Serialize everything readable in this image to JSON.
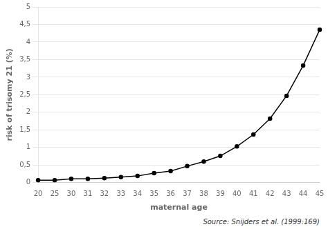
{
  "chart_data": {
    "type": "line",
    "categories": [
      "20",
      "25",
      "30",
      "31",
      "32",
      "33",
      "34",
      "35",
      "36",
      "37",
      "38",
      "39",
      "40",
      "41",
      "42",
      "43",
      "44",
      "45"
    ],
    "values": [
      0.07,
      0.07,
      0.11,
      0.11,
      0.13,
      0.16,
      0.19,
      0.27,
      0.33,
      0.47,
      0.6,
      0.76,
      1.03,
      1.37,
      1.82,
      2.47,
      3.33,
      4.35
    ],
    "x_label": "maternal age",
    "y_label": "risk of trisomy 21 (%)",
    "annotation": "Source: Snijders et al. (1999:169)",
    "ylim": [
      0,
      5
    ],
    "yticks": [
      0,
      {
        "value": 0.5,
        "label": "0,5"
      },
      1,
      {
        "value": 1.5,
        "label": "1,5"
      },
      2,
      {
        "value": 2.5,
        "label": "2,5"
      },
      3,
      {
        "value": 3.5,
        "label": "3,5"
      },
      4,
      {
        "value": 4.5,
        "label": "4,5"
      },
      5
    ],
    "grid": true,
    "color": "#000000",
    "marker": "point"
  }
}
